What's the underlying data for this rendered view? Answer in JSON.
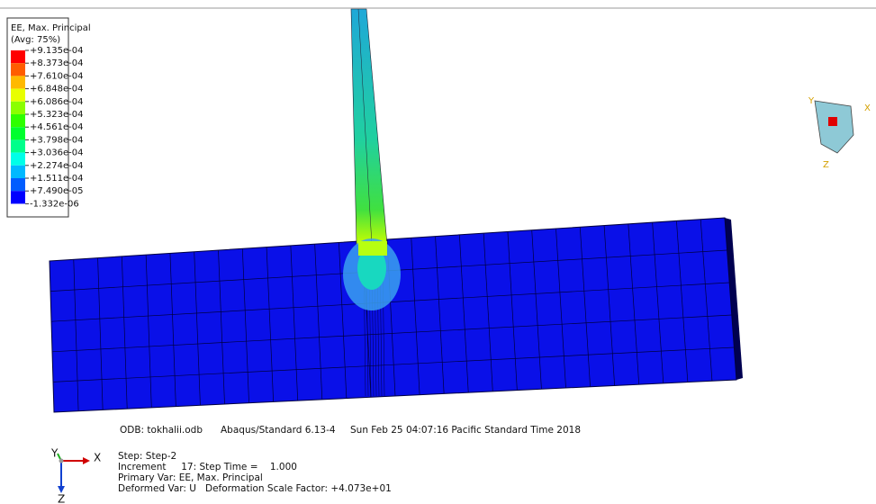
{
  "legend": {
    "title": "EE, Max. Principal",
    "subtitle": "(Avg: 75%)",
    "labels": [
      "+9.135e-04",
      "+8.373e-04",
      "+7.610e-04",
      "+6.848e-04",
      "+6.086e-04",
      "+5.323e-04",
      "+4.561e-04",
      "+3.798e-04",
      "+3.036e-04",
      "+2.274e-04",
      "+1.511e-04",
      "+7.490e-05",
      "-1.332e-06"
    ],
    "colors": [
      "#ff0000",
      "#ff5d00",
      "#ffb900",
      "#e8ff00",
      "#8bff00",
      "#2eff00",
      "#00ff2e",
      "#00ff8b",
      "#00ffe8",
      "#00b9ff",
      "#005dff",
      "#0000ff"
    ]
  },
  "view_triad": {
    "x": "X",
    "y": "Y",
    "z": "Z"
  },
  "info": {
    "odb": "ODB: tokhalii.odb",
    "solver": "Abaqus/Standard 6.13-4",
    "date": "Sun Feb 25 04:07:16 Pacific Standard Time 2018",
    "step": "Step: Step-2",
    "increment": "Increment     17: Step Time =    1.000",
    "primary_var": "Primary Var: EE, Max. Principal",
    "deformed_var": "Deformed Var: U   Deformation Scale Factor: +4.073e+01"
  },
  "triad": {
    "y": "Y",
    "x": "X",
    "z": "Z"
  }
}
